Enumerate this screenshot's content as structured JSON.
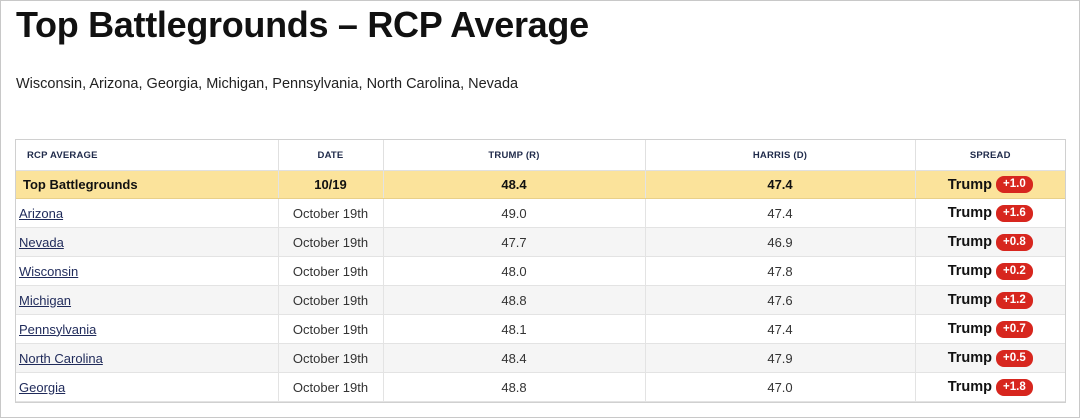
{
  "title": "Top Battlegrounds – RCP Average",
  "subtitle": "Wisconsin, Arizona, Georgia, Michigan, Pennsylvania, North Carolina, Nevada",
  "table": {
    "headers": [
      "RCP AVERAGE",
      "DATE",
      "TRUMP (R)",
      "HARRIS (D)",
      "SPREAD"
    ],
    "average": {
      "name": "Top Battlegrounds",
      "date": "10/19",
      "trump": "48.4",
      "harris": "47.4",
      "leader": "Trump",
      "spread": "+1.0"
    },
    "rows": [
      {
        "name": "Arizona",
        "date": "October 19th",
        "trump": "49.0",
        "harris": "47.4",
        "leader": "Trump",
        "spread": "+1.6"
      },
      {
        "name": "Nevada",
        "date": "October 19th",
        "trump": "47.7",
        "harris": "46.9",
        "leader": "Trump",
        "spread": "+0.8"
      },
      {
        "name": "Wisconsin",
        "date": "October 19th",
        "trump": "48.0",
        "harris": "47.8",
        "leader": "Trump",
        "spread": "+0.2"
      },
      {
        "name": "Michigan",
        "date": "October 19th",
        "trump": "48.8",
        "harris": "47.6",
        "leader": "Trump",
        "spread": "+1.2"
      },
      {
        "name": "Pennsylvania",
        "date": "October 19th",
        "trump": "48.1",
        "harris": "47.4",
        "leader": "Trump",
        "spread": "+0.7"
      },
      {
        "name": "North Carolina",
        "date": "October 19th",
        "trump": "48.4",
        "harris": "47.9",
        "leader": "Trump",
        "spread": "+0.5"
      },
      {
        "name": "Georgia",
        "date": "October 19th",
        "trump": "48.8",
        "harris": "47.0",
        "leader": "Trump",
        "spread": "+1.8"
      }
    ]
  },
  "colors": {
    "average_row_bg": "#fbe39b",
    "spread_badge_bg": "#d7261e",
    "link_color": "#1f2a5a"
  }
}
